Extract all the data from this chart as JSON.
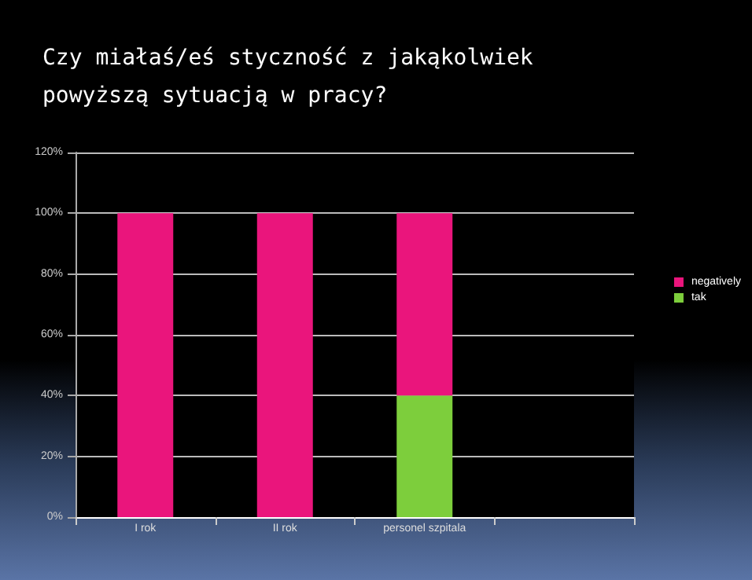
{
  "chart_data": {
    "type": "bar",
    "stacked": true,
    "title": "Czy miałaś/eś styczność z jakąkolwiek powyższą sytuacją w pracy?",
    "categories": [
      "I rok",
      "II rok",
      "personel szpitala",
      null
    ],
    "series": [
      {
        "name": "tak",
        "color": "#7dce3c",
        "values": [
          0,
          0,
          40,
          null
        ]
      },
      {
        "name": "negatively",
        "color": "#ea157c",
        "values": [
          100,
          100,
          60,
          null
        ]
      }
    ],
    "ylim": [
      0,
      120
    ],
    "yticks": [
      {
        "value": 0,
        "label": "0%"
      },
      {
        "value": 20,
        "label": "20%"
      },
      {
        "value": 40,
        "label": "40%"
      },
      {
        "value": 60,
        "label": "60%"
      },
      {
        "value": 80,
        "label": "80%"
      },
      {
        "value": 100,
        "label": "100%"
      },
      {
        "value": 120,
        "label": "120%"
      }
    ],
    "grid": "y",
    "legend": "right"
  }
}
